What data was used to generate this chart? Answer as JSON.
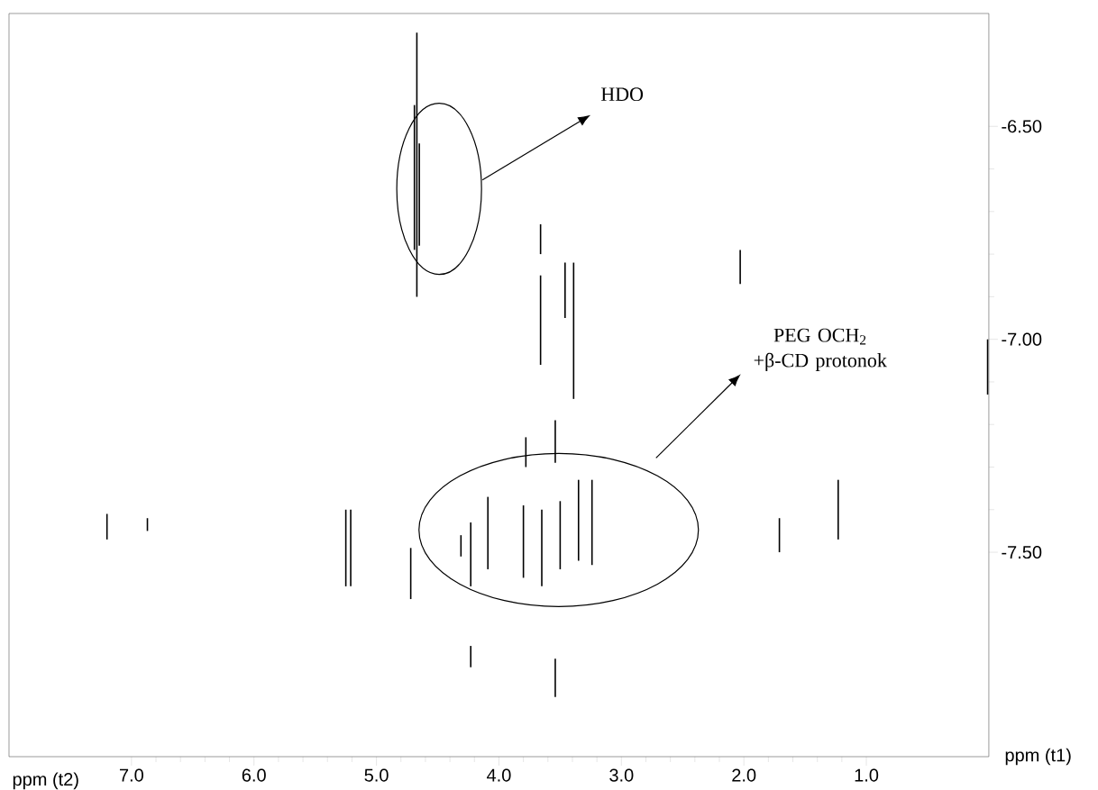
{
  "chart_data": {
    "type": "line",
    "xlabel": "ppm (t2)",
    "ylabel": "ppm (t1)",
    "xlim": [
      8.0,
      0.0
    ],
    "ylim": [
      -7.98,
      -6.235
    ],
    "xticks": [
      {
        "value": 7,
        "label": "7.0"
      },
      {
        "value": 6,
        "label": "6.0"
      },
      {
        "value": 5,
        "label": "5.0"
      },
      {
        "value": 4,
        "label": "4.0"
      },
      {
        "value": 3,
        "label": "3.0"
      },
      {
        "value": 2,
        "label": "2.0"
      },
      {
        "value": 1,
        "label": "1.0"
      }
    ],
    "yticks": [
      {
        "value": -6.5,
        "label": "-6.50"
      },
      {
        "value": -7.0,
        "label": "-7.00"
      },
      {
        "value": -7.5,
        "label": "-7.50"
      }
    ],
    "grid": false,
    "annotations": [
      "HDO",
      "PEG OCH$_{2}$ +β-CD protonok"
    ],
    "series": [
      {
        "color": "#000000",
        "x": [
          4.67,
          4.67
        ],
        "values": [
          -6.28,
          -6.9
        ]
      },
      {
        "color": "#000000",
        "x": [
          4.69,
          4.69
        ],
        "values": [
          -6.45,
          -6.79
        ]
      },
      {
        "color": "#000000",
        "x": [
          4.65,
          4.65
        ],
        "values": [
          -6.54,
          -6.78
        ]
      },
      {
        "color": "#000000",
        "x": [
          3.66,
          3.66
        ],
        "values": [
          -6.73,
          -6.8
        ]
      },
      {
        "color": "#000000",
        "x": [
          3.66,
          3.66
        ],
        "values": [
          -6.85,
          -7.06
        ]
      },
      {
        "color": "#000000",
        "x": [
          3.46,
          3.46
        ],
        "values": [
          -6.82,
          -6.95
        ]
      },
      {
        "color": "#000000",
        "x": [
          3.39,
          3.39
        ],
        "values": [
          -6.82,
          -7.14
        ]
      },
      {
        "color": "#000000",
        "x": [
          2.03,
          2.03
        ],
        "values": [
          -6.79,
          -6.87
        ]
      },
      {
        "color": "#000000",
        "x": [
          0.01,
          0.01
        ],
        "values": [
          -7.0,
          -7.13
        ]
      },
      {
        "color": "#000000",
        "x": [
          7.2,
          7.2
        ],
        "values": [
          -7.41,
          -7.47
        ]
      },
      {
        "color": "#000000",
        "x": [
          6.87,
          6.87
        ],
        "values": [
          -7.42,
          -7.45
        ]
      },
      {
        "color": "#000000",
        "x": [
          5.25,
          5.25
        ],
        "values": [
          -7.4,
          -7.58
        ]
      },
      {
        "color": "#000000",
        "x": [
          5.21,
          5.21
        ],
        "values": [
          -7.4,
          -7.58
        ]
      },
      {
        "color": "#000000",
        "x": [
          4.72,
          4.72
        ],
        "values": [
          -7.49,
          -7.61
        ]
      },
      {
        "color": "#000000",
        "x": [
          4.31,
          4.31
        ],
        "values": [
          -7.46,
          -7.51
        ]
      },
      {
        "color": "#000000",
        "x": [
          4.23,
          4.23
        ],
        "values": [
          -7.43,
          -7.58
        ]
      },
      {
        "color": "#000000",
        "x": [
          4.09,
          4.09
        ],
        "values": [
          -7.37,
          -7.54
        ]
      },
      {
        "color": "#000000",
        "x": [
          4.23,
          4.23
        ],
        "values": [
          -7.72,
          -7.77
        ]
      },
      {
        "color": "#000000",
        "x": [
          3.78,
          3.78
        ],
        "values": [
          -7.23,
          -7.3
        ]
      },
      {
        "color": "#000000",
        "x": [
          3.54,
          3.54
        ],
        "values": [
          -7.19,
          -7.29
        ]
      },
      {
        "color": "#000000",
        "x": [
          3.8,
          3.8
        ],
        "values": [
          -7.39,
          -7.56
        ]
      },
      {
        "color": "#000000",
        "x": [
          3.65,
          3.65
        ],
        "values": [
          -7.4,
          -7.58
        ]
      },
      {
        "color": "#000000",
        "x": [
          3.5,
          3.5
        ],
        "values": [
          -7.38,
          -7.54
        ]
      },
      {
        "color": "#000000",
        "x": [
          3.35,
          3.35
        ],
        "values": [
          -7.33,
          -7.52
        ]
      },
      {
        "color": "#000000",
        "x": [
          3.24,
          3.24
        ],
        "values": [
          -7.33,
          -7.53
        ]
      },
      {
        "color": "#000000",
        "x": [
          3.54,
          3.54
        ],
        "values": [
          -7.75,
          -7.84
        ]
      },
      {
        "color": "#000000",
        "x": [
          1.71,
          1.71
        ],
        "values": [
          -7.42,
          -7.5
        ]
      },
      {
        "color": "#000000",
        "x": [
          1.23,
          1.23
        ],
        "values": [
          -7.33,
          -7.47
        ]
      }
    ]
  }
}
